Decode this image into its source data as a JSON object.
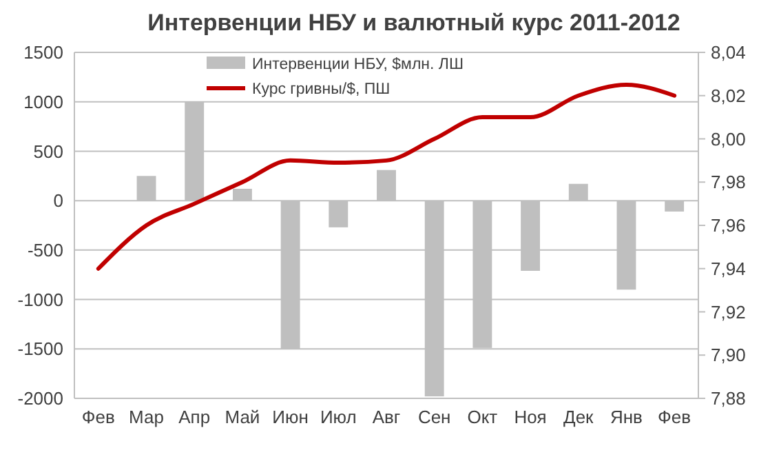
{
  "chart_data": {
    "type": "bar",
    "title": "Интервенции НБУ и валютный курс 2011-2012",
    "categories": [
      "Фев",
      "Мар",
      "Апр",
      "Май",
      "Июн",
      "Июл",
      "Авг",
      "Сен",
      "Окт",
      "Ноя",
      "Дек",
      "Янв",
      "Фев"
    ],
    "series": [
      {
        "name": "Интервенции НБУ, $млн. ЛШ",
        "color": "#bfbfbf",
        "values": [
          null,
          250,
          1000,
          120,
          -1500,
          -270,
          310,
          -1980,
          -1490,
          -710,
          170,
          -900,
          -110
        ]
      },
      {
        "name": "Курс гривны/$, ПШ",
        "type": "line",
        "axis": "y2",
        "color": "#c00000",
        "values": [
          7.94,
          7.96,
          7.97,
          7.98,
          7.99,
          7.989,
          7.99,
          8.0,
          8.01,
          8.01,
          8.02,
          8.025,
          8.02
        ]
      }
    ],
    "ylim": [
      -2000,
      1500
    ],
    "yticks": [
      -2000,
      -1500,
      -1000,
      -500,
      0,
      500,
      1000,
      1500
    ],
    "y2lim": [
      7.88,
      8.04
    ],
    "y2ticks": [
      {
        "value": 7.88,
        "label": "7,88"
      },
      {
        "value": 7.9,
        "label": "7,90"
      },
      {
        "value": 7.92,
        "label": "7,92"
      },
      {
        "value": 7.94,
        "label": "7,94"
      },
      {
        "value": 7.96,
        "label": "7,96"
      },
      {
        "value": 7.98,
        "label": "7,98"
      },
      {
        "value": 8.0,
        "label": "8,00"
      },
      {
        "value": 8.02,
        "label": "8,02"
      },
      {
        "value": 8.04,
        "label": "8,04"
      }
    ],
    "grid": "y",
    "legend": "top",
    "marker": "none",
    "line_style": "solid"
  }
}
